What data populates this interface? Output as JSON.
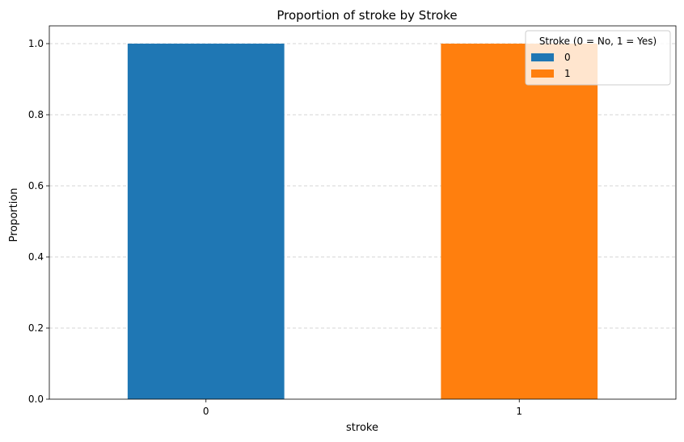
{
  "chart_data": {
    "type": "bar",
    "title": "Proportion of stroke by Stroke",
    "xlabel": "stroke",
    "ylabel": "Proportion",
    "categories": [
      "0",
      "1"
    ],
    "series": [
      {
        "name": "0",
        "values": [
          1.0,
          0.0
        ],
        "color": "#1f77b4"
      },
      {
        "name": "1",
        "values": [
          0.0,
          1.0
        ],
        "color": "#ff7f0e"
      }
    ],
    "stacked": true,
    "ylim": [
      0,
      1.05
    ],
    "yticks": [
      0.0,
      0.2,
      0.4,
      0.6,
      0.8,
      1.0
    ],
    "ytick_labels": [
      "0.0",
      "0.2",
      "0.4",
      "0.6",
      "0.8",
      "1.0"
    ],
    "grid": "y-dashed",
    "legend": {
      "title": "Stroke (0 = No, 1 = Yes)",
      "position": "top-right",
      "entries": [
        "0",
        "1"
      ]
    }
  }
}
